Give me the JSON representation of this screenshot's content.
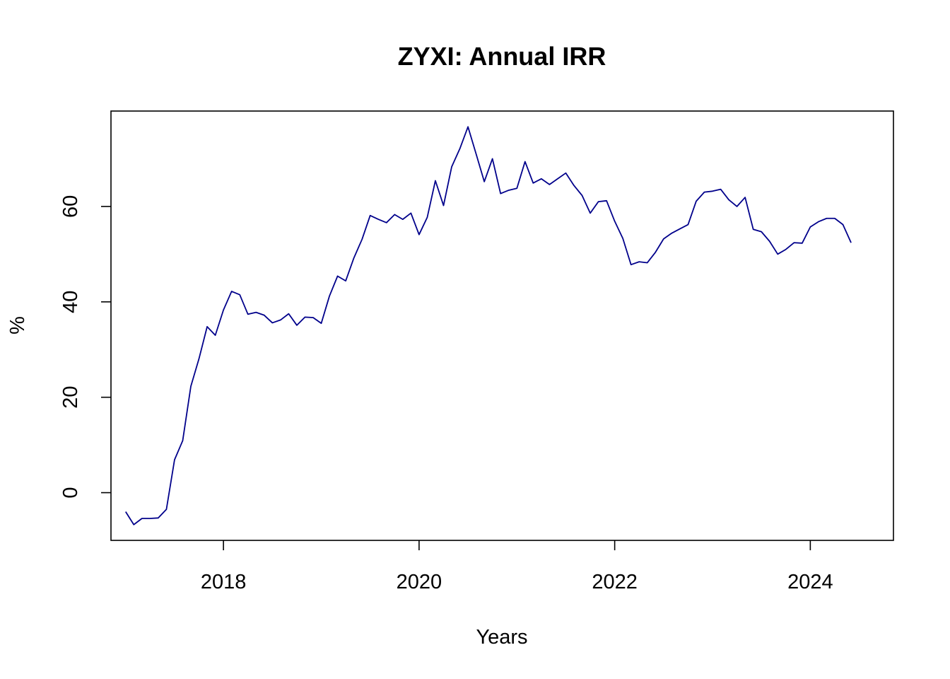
{
  "chart_data": {
    "type": "line",
    "title": "ZYXI: Annual IRR",
    "xlabel": "Years",
    "ylabel": "%",
    "xlim": [
      2016.85,
      2024.85
    ],
    "ylim": [
      -10,
      80
    ],
    "x_ticks": [
      2018,
      2020,
      2022,
      2024
    ],
    "y_ticks": [
      0,
      20,
      40,
      60
    ],
    "grid": false,
    "legend": "none",
    "colors": {
      "line": "#00008B",
      "frame": "#000000"
    },
    "series": [
      {
        "x": [
          2017.0,
          2017.0833,
          2017.1667,
          2017.25,
          2017.3333,
          2017.4167,
          2017.5,
          2017.5833,
          2017.6667,
          2017.75,
          2017.8333,
          2017.9167,
          2018.0,
          2018.0833,
          2018.1667,
          2018.25,
          2018.3333,
          2018.4167,
          2018.5,
          2018.5833,
          2018.6667,
          2018.75,
          2018.8333,
          2018.9167,
          2019.0,
          2019.0833,
          2019.1667,
          2019.25,
          2019.3333,
          2019.4167,
          2019.5,
          2019.5833,
          2019.6667,
          2019.75,
          2019.8333,
          2019.9167,
          2020.0,
          2020.0833,
          2020.1667,
          2020.25,
          2020.3333,
          2020.4167,
          2020.5,
          2020.5833,
          2020.6667,
          2020.75,
          2020.8333,
          2020.9167,
          2021.0,
          2021.0833,
          2021.1667,
          2021.25,
          2021.3333,
          2021.4167,
          2021.5,
          2021.5833,
          2021.6667,
          2021.75,
          2021.8333,
          2021.9167,
          2022.0,
          2022.0833,
          2022.1667,
          2022.25,
          2022.3333,
          2022.4167,
          2022.5,
          2022.5833,
          2022.6667,
          2022.75,
          2022.8333,
          2022.9167,
          2023.0,
          2023.0833,
          2023.1667,
          2023.25,
          2023.3333,
          2023.4167,
          2023.5,
          2023.5833,
          2023.6667,
          2023.75,
          2023.8333,
          2023.9167,
          2024.0,
          2024.0833,
          2024.1667,
          2024.25,
          2024.3333,
          2024.4167
        ],
        "y": [
          -4.0,
          -6.7,
          -5.4,
          -5.4,
          -5.3,
          -3.5,
          6.9,
          10.9,
          22.3,
          28.1,
          34.8,
          33.0,
          38.3,
          42.2,
          41.5,
          37.4,
          37.8,
          37.2,
          35.6,
          36.2,
          37.5,
          35.1,
          36.8,
          36.7,
          35.5,
          41.2,
          45.4,
          44.4,
          49.2,
          53.1,
          58.1,
          57.3,
          56.6,
          58.3,
          57.3,
          58.6,
          54.1,
          57.7,
          65.4,
          60.2,
          68.3,
          72.1,
          76.7,
          71.0,
          65.2,
          70.0,
          62.7,
          63.4,
          63.8,
          69.4,
          64.9,
          65.8,
          64.6,
          65.8,
          67.0,
          64.4,
          62.3,
          58.6,
          61.0,
          61.2,
          56.9,
          53.3,
          47.8,
          48.4,
          48.2,
          50.4,
          53.2,
          54.4,
          55.3,
          56.2,
          61.1,
          63.0,
          63.2,
          63.6,
          61.4,
          60.0,
          61.9,
          55.2,
          54.7,
          52.7,
          50.0,
          51.0,
          52.4,
          52.3,
          55.7,
          56.8,
          57.5,
          57.5,
          56.2,
          52.4
        ]
      }
    ]
  }
}
